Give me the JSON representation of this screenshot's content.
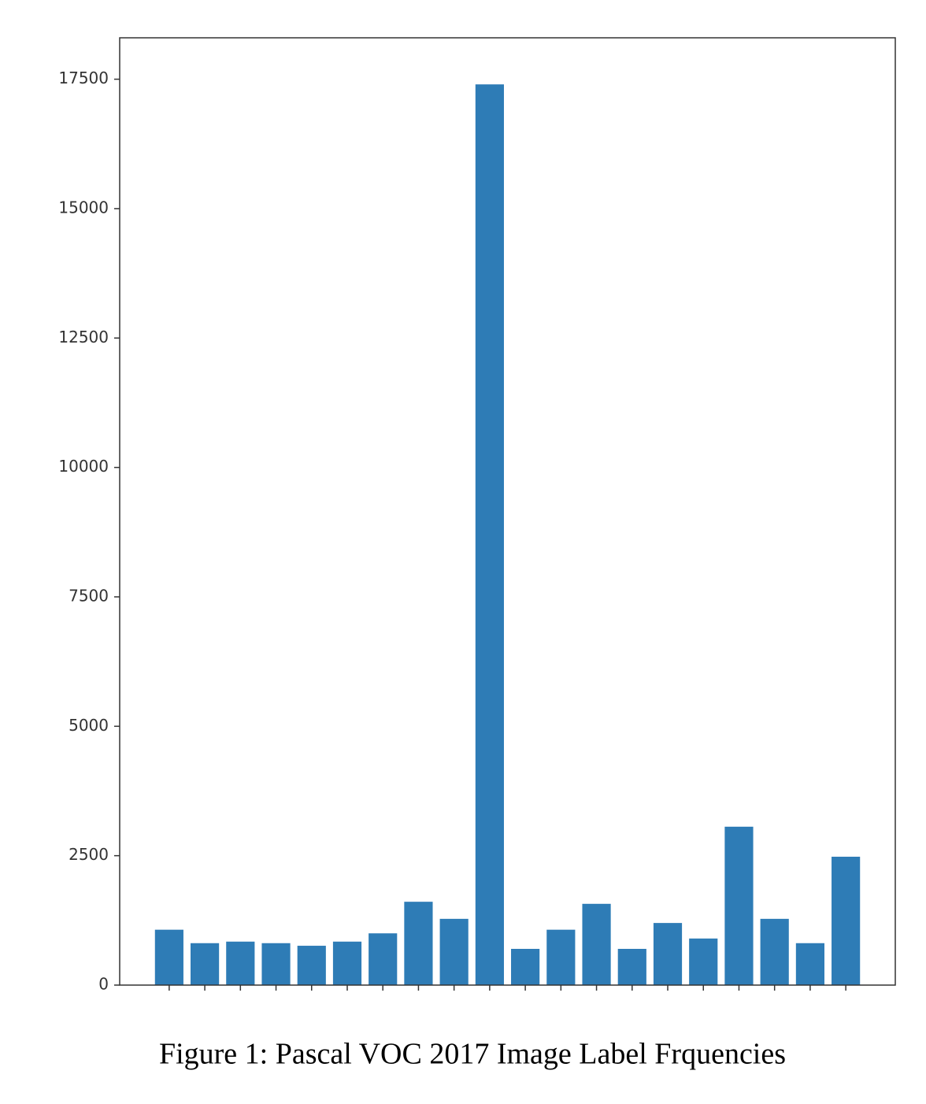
{
  "chart_data": {
    "type": "bar",
    "caption": "Figure 1: Pascal VOC 2017 Image Label Frquencies",
    "categories": [
      null,
      null,
      null,
      null,
      null,
      null,
      null,
      null,
      null,
      null,
      null,
      null,
      null,
      null,
      null,
      null,
      null,
      null,
      null,
      null
    ],
    "values": [
      1070,
      810,
      840,
      810,
      760,
      840,
      1000,
      1610,
      1280,
      17400,
      700,
      1070,
      1570,
      700,
      1200,
      900,
      3060,
      1280,
      810,
      2480
    ],
    "color": "#2e7cb6",
    "ylim": [
      0,
      18300
    ],
    "yticks": [
      0,
      2500,
      5000,
      7500,
      10000,
      12500,
      15000,
      17500
    ],
    "grid": false
  }
}
